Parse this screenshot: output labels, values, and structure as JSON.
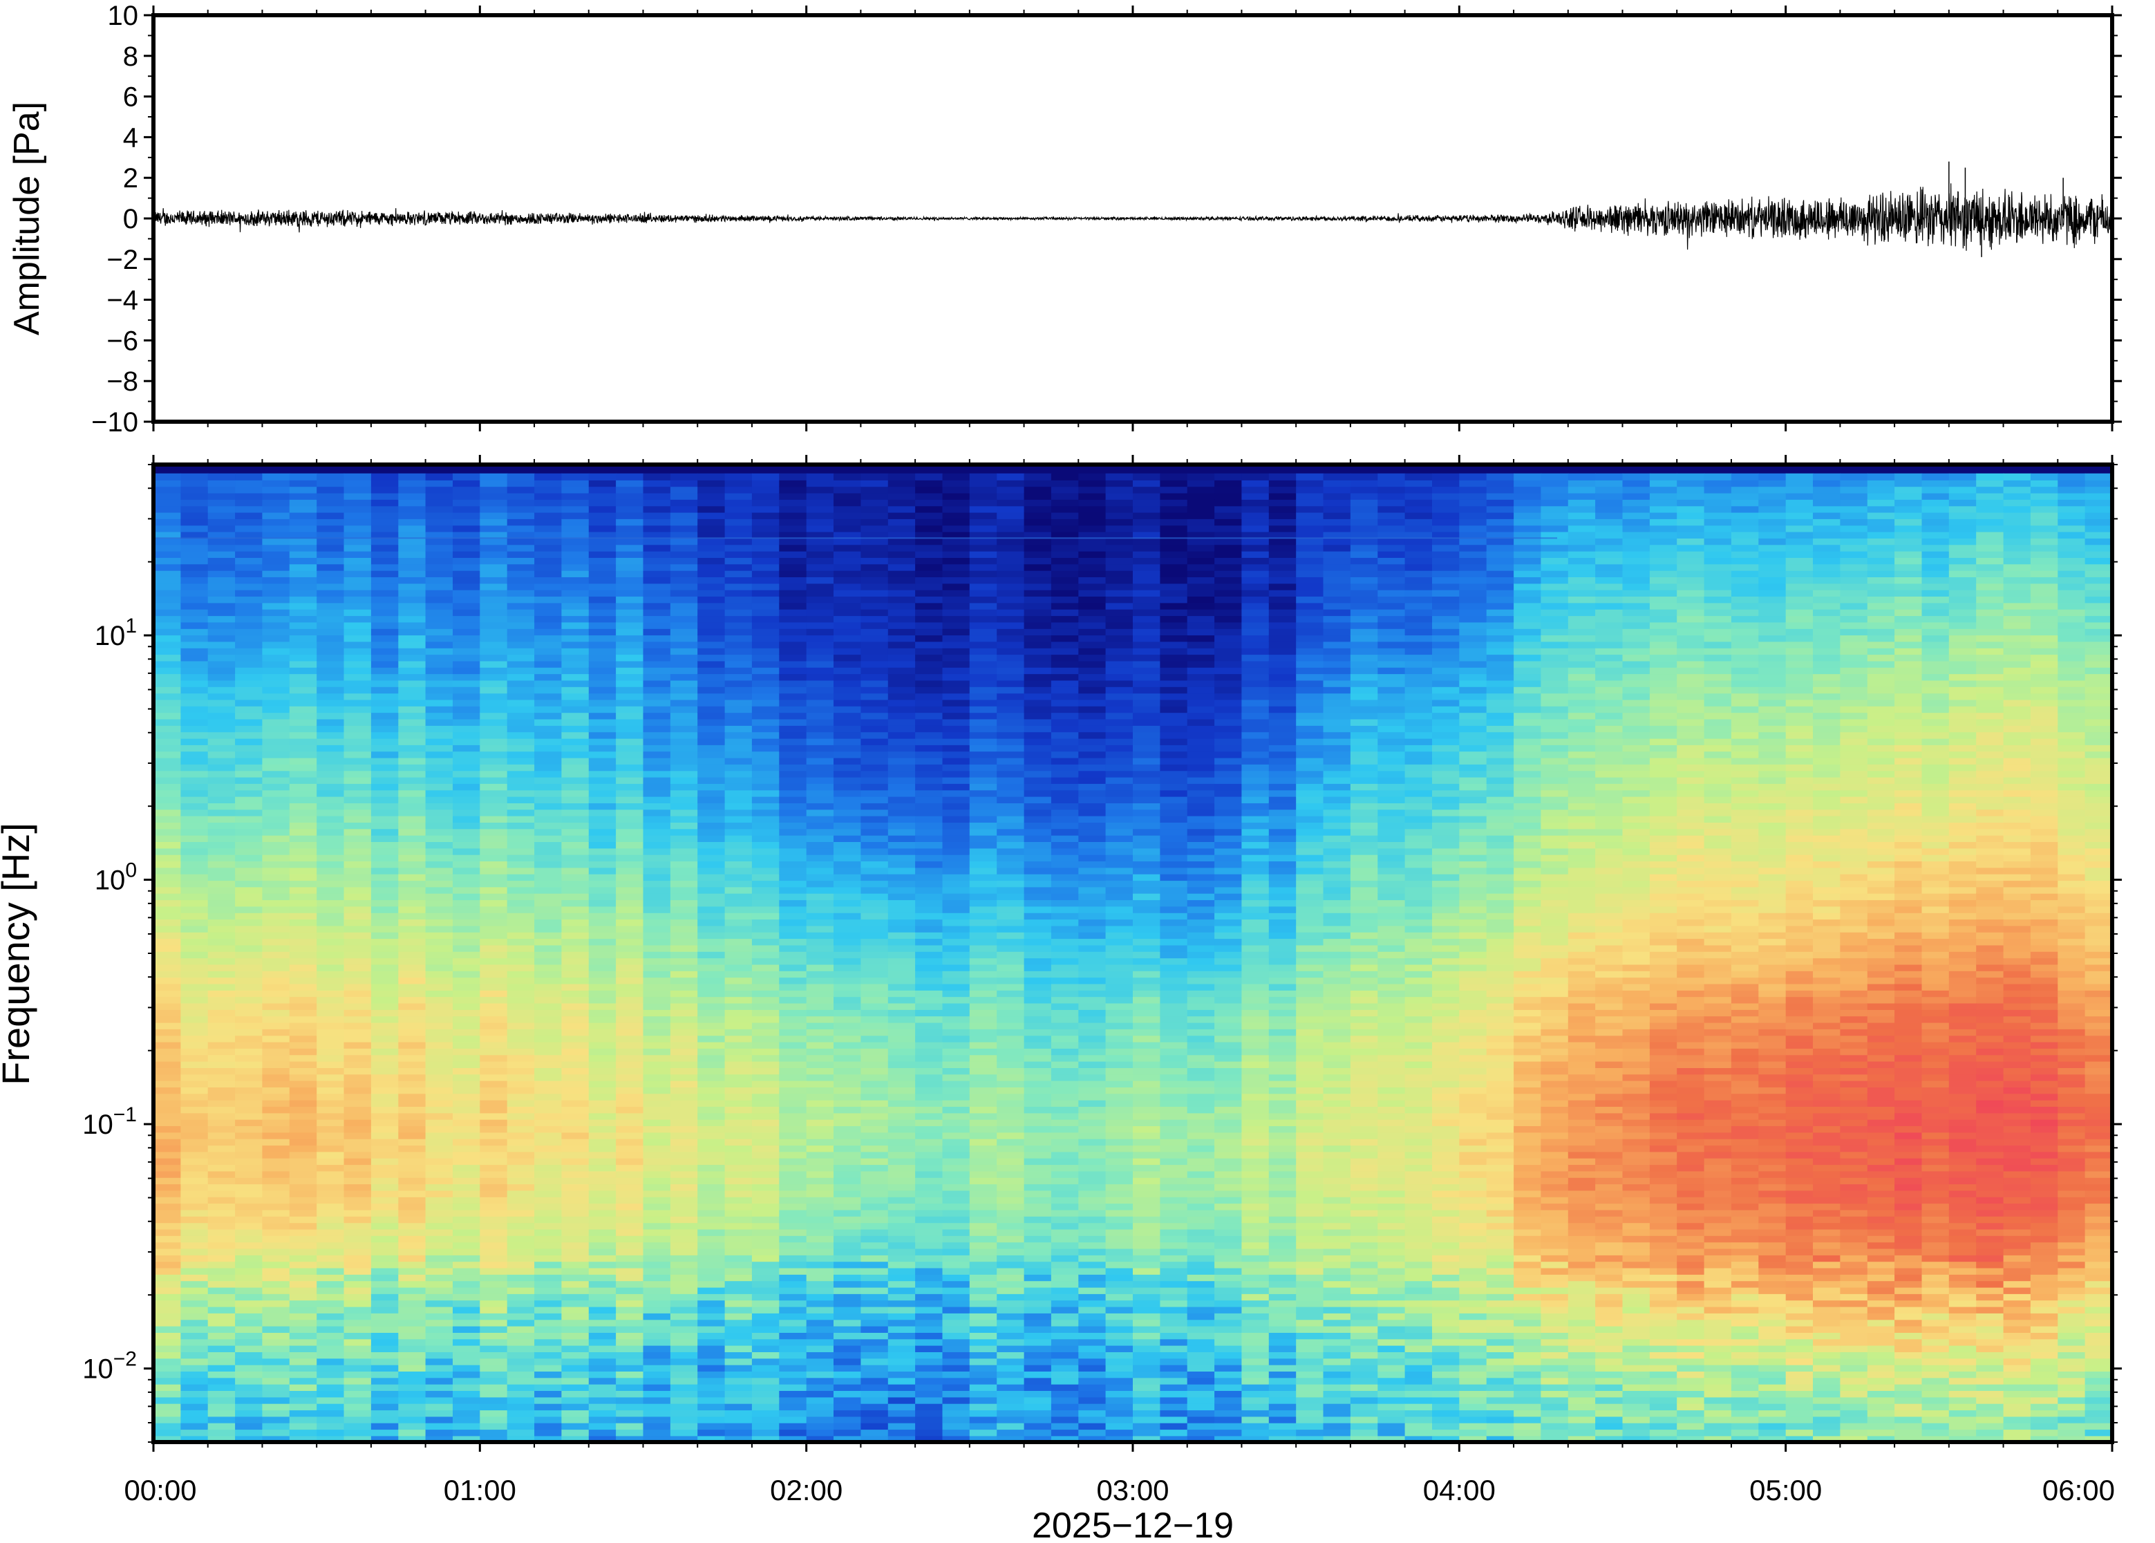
{
  "chart_data": [
    {
      "type": "line",
      "ylabel": "Amplitude [Pa]",
      "ylim": [
        -10,
        10
      ],
      "yticks": [
        -10,
        -8,
        -6,
        -4,
        -2,
        0,
        2,
        4,
        6,
        8,
        10
      ],
      "ytick_labels": [
        "−10",
        "−8",
        "−6",
        "−4",
        "−2",
        "0",
        "2",
        "4",
        "6",
        "8",
        "10"
      ],
      "xlim": [
        "00:00",
        "06:00"
      ],
      "grid": false,
      "series": [
        {
          "time_h": [
            0.0,
            0.25,
            0.5,
            0.75,
            1.0,
            1.25,
            1.5,
            1.75,
            2.0,
            2.25,
            2.5,
            2.75,
            3.0,
            3.25,
            3.5,
            3.75,
            4.0,
            4.25,
            4.35,
            4.5,
            4.75,
            5.0,
            5.25,
            5.5,
            5.75,
            6.0
          ],
          "envelope_pa": [
            0.35,
            0.35,
            0.4,
            0.3,
            0.3,
            0.25,
            0.2,
            0.15,
            0.1,
            0.08,
            0.06,
            0.06,
            0.06,
            0.08,
            0.1,
            0.12,
            0.15,
            0.2,
            0.5,
            0.7,
            0.8,
            0.9,
            1.1,
            1.4,
            1.2,
            1.0
          ],
          "peak_pa": [
            {
              "time_h": 5.5,
              "value": 2.8
            },
            {
              "time_h": 5.55,
              "value": 2.5
            },
            {
              "time_h": 5.85,
              "value": 2.0
            },
            {
              "time_h": 5.6,
              "value": -1.9
            }
          ]
        }
      ]
    },
    {
      "type": "heatmap",
      "ylabel": "Frequency [Hz]",
      "xlabel": "2025−12−19",
      "y_scale": "log",
      "ylim_hz": [
        0.005,
        50
      ],
      "ytick_values": [
        0.01,
        0.1,
        1,
        10
      ],
      "ytick_labels": [
        {
          "base": "10",
          "exp": "−2"
        },
        {
          "base": "10",
          "exp": "−1"
        },
        {
          "base": "10",
          "exp": "0"
        },
        {
          "base": "10",
          "exp": "1"
        }
      ],
      "xticks": [
        "00:00",
        "01:00",
        "02:00",
        "03:00",
        "04:00",
        "05:00",
        "06:00"
      ],
      "xlim": [
        "00:00",
        "06:00"
      ],
      "colormap": "jet",
      "colors": [
        "#0a0a78",
        "#1238c8",
        "#1e78e8",
        "#30c8f0",
        "#80e8c0",
        "#c8f088",
        "#f8e080",
        "#f8b060",
        "#f07048",
        "#f04858"
      ],
      "grid": false,
      "power_level_grid": {
        "description_levels": "0 = darkest blue, 1 = red",
        "time_h": [
          0,
          0.5,
          1,
          1.5,
          1.9,
          2.2,
          2.5,
          2.8,
          3.1,
          3.4,
          3.7,
          4.0,
          4.3,
          4.5,
          5.0,
          5.5,
          6.0
        ],
        "freq_hz": [
          50,
          20,
          10,
          5,
          2,
          1,
          0.5,
          0.3,
          0.15,
          0.1,
          0.05,
          0.03,
          0.02,
          0.01,
          0.006
        ],
        "levels": [
          [
            0.18,
            0.16,
            0.16,
            0.12,
            0.06,
            0.04,
            0.04,
            0.04,
            0.04,
            0.05,
            0.08,
            0.08,
            0.22,
            0.24,
            0.25,
            0.27,
            0.27
          ],
          [
            0.22,
            0.22,
            0.22,
            0.2,
            0.08,
            0.05,
            0.05,
            0.05,
            0.05,
            0.06,
            0.14,
            0.14,
            0.32,
            0.34,
            0.36,
            0.38,
            0.4
          ],
          [
            0.28,
            0.27,
            0.27,
            0.25,
            0.12,
            0.07,
            0.07,
            0.07,
            0.07,
            0.1,
            0.2,
            0.2,
            0.38,
            0.42,
            0.44,
            0.46,
            0.48
          ],
          [
            0.36,
            0.34,
            0.33,
            0.3,
            0.18,
            0.1,
            0.12,
            0.12,
            0.1,
            0.16,
            0.28,
            0.28,
            0.44,
            0.48,
            0.52,
            0.55,
            0.56
          ],
          [
            0.44,
            0.42,
            0.4,
            0.36,
            0.26,
            0.18,
            0.2,
            0.2,
            0.18,
            0.24,
            0.35,
            0.36,
            0.5,
            0.55,
            0.6,
            0.62,
            0.62
          ],
          [
            0.52,
            0.5,
            0.48,
            0.44,
            0.34,
            0.28,
            0.28,
            0.28,
            0.26,
            0.32,
            0.4,
            0.42,
            0.56,
            0.62,
            0.66,
            0.7,
            0.68
          ],
          [
            0.6,
            0.58,
            0.56,
            0.52,
            0.42,
            0.36,
            0.36,
            0.36,
            0.34,
            0.4,
            0.46,
            0.5,
            0.64,
            0.7,
            0.74,
            0.8,
            0.76
          ],
          [
            0.66,
            0.64,
            0.62,
            0.58,
            0.48,
            0.42,
            0.42,
            0.42,
            0.42,
            0.46,
            0.52,
            0.56,
            0.72,
            0.78,
            0.84,
            0.88,
            0.84
          ],
          [
            0.72,
            0.7,
            0.66,
            0.62,
            0.54,
            0.46,
            0.46,
            0.46,
            0.48,
            0.52,
            0.56,
            0.6,
            0.78,
            0.84,
            0.9,
            0.92,
            0.9
          ],
          [
            0.74,
            0.72,
            0.68,
            0.64,
            0.56,
            0.48,
            0.48,
            0.48,
            0.5,
            0.54,
            0.58,
            0.62,
            0.8,
            0.86,
            0.92,
            0.94,
            0.92
          ],
          [
            0.72,
            0.7,
            0.66,
            0.62,
            0.54,
            0.44,
            0.46,
            0.48,
            0.5,
            0.54,
            0.56,
            0.6,
            0.8,
            0.84,
            0.9,
            0.92,
            0.88
          ],
          [
            0.66,
            0.6,
            0.58,
            0.56,
            0.48,
            0.38,
            0.42,
            0.44,
            0.46,
            0.5,
            0.52,
            0.56,
            0.74,
            0.78,
            0.84,
            0.86,
            0.8
          ],
          [
            0.56,
            0.5,
            0.48,
            0.46,
            0.4,
            0.32,
            0.36,
            0.38,
            0.4,
            0.44,
            0.46,
            0.5,
            0.64,
            0.68,
            0.74,
            0.76,
            0.7
          ],
          [
            0.44,
            0.4,
            0.38,
            0.36,
            0.32,
            0.24,
            0.28,
            0.3,
            0.32,
            0.36,
            0.38,
            0.4,
            0.5,
            0.52,
            0.56,
            0.58,
            0.54
          ],
          [
            0.38,
            0.34,
            0.34,
            0.32,
            0.28,
            0.16,
            0.24,
            0.28,
            0.28,
            0.32,
            0.34,
            0.36,
            0.42,
            0.44,
            0.46,
            0.48,
            0.46
          ]
        ]
      }
    }
  ]
}
